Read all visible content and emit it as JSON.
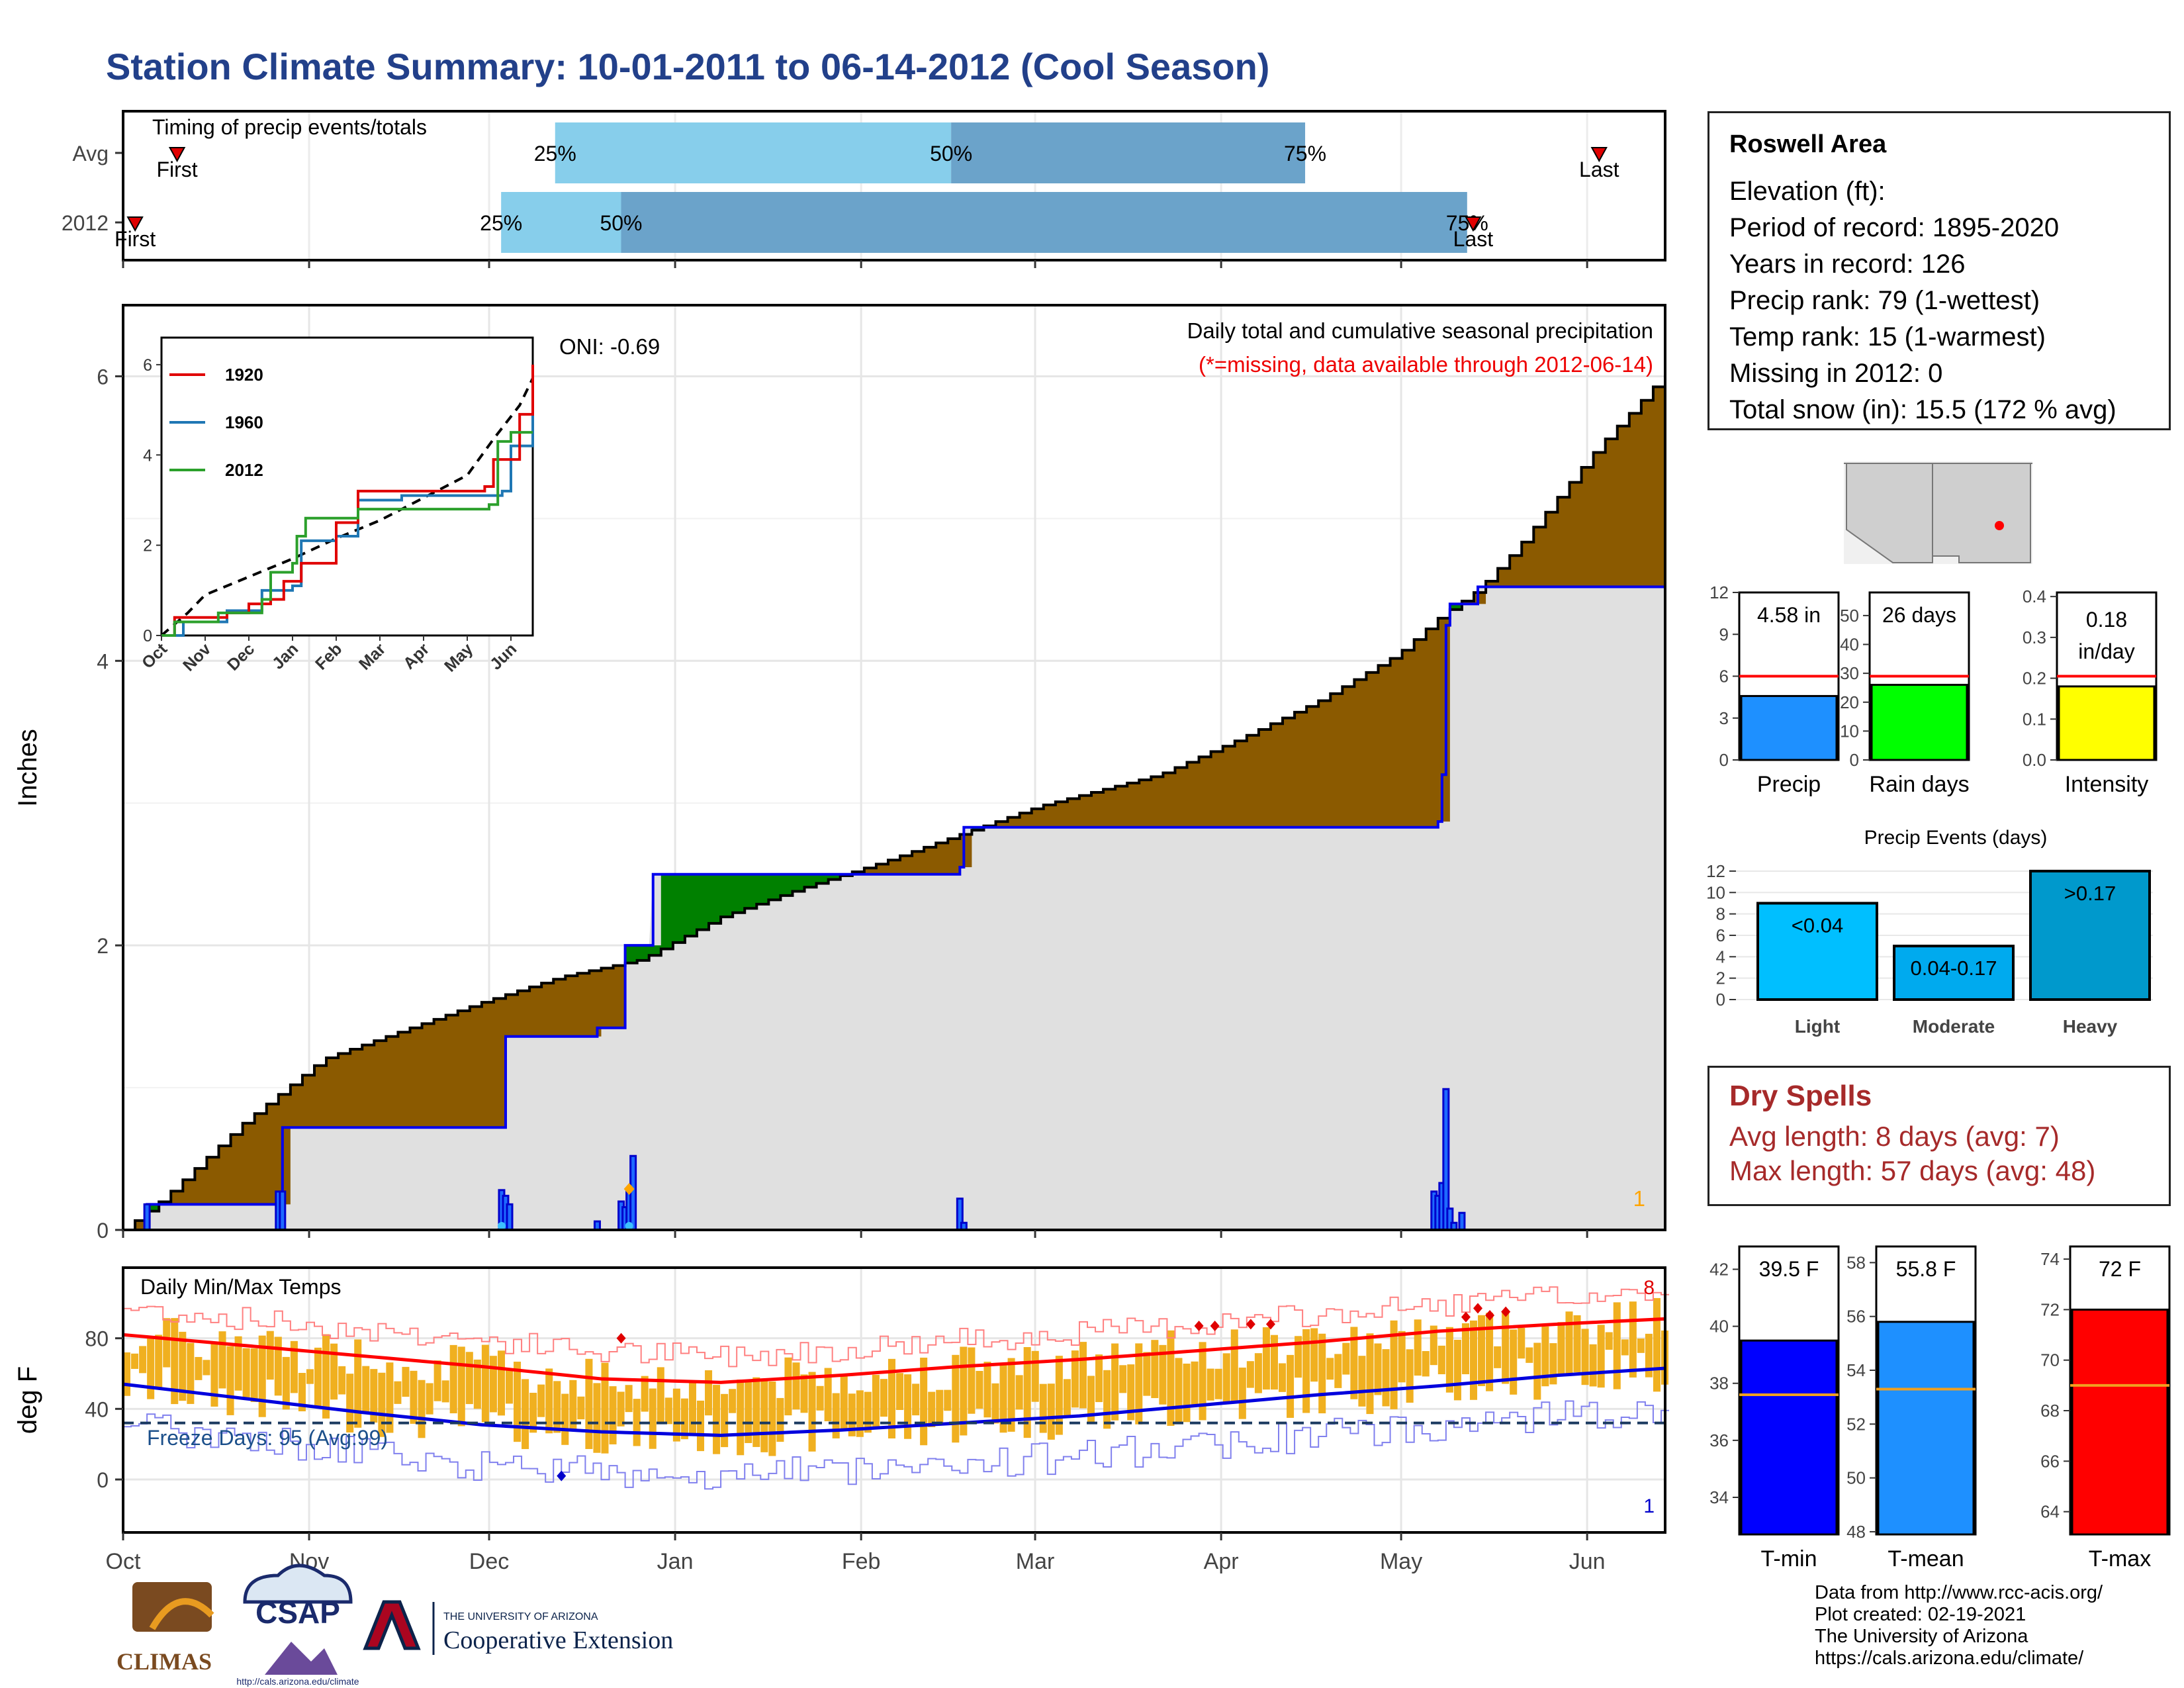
{
  "title": "Station Climate Summary: 10-01-2011 to 06-14-2012 (Cool Season)",
  "station": {
    "name": "Roswell Area",
    "lines": [
      "Elevation (ft):",
      "Period of record: 1895-2020",
      "Years in record: 126",
      "Precip rank: 79 (1-wettest)",
      "Temp rank: 15 (1-warmest)",
      "Missing in 2012: 0",
      "Total snow (in): 15.5 (172 % avg)"
    ]
  },
  "dry_spells": {
    "title": "Dry Spells",
    "avg_length": "Avg length: 8 days (avg: 7)",
    "max_length": "Max length: 57 days (avg: 48)"
  },
  "credits": [
    "Data from http://www.rcc-acis.org/",
    "Plot created: 02-19-2021",
    "The University of Arizona",
    "https://cals.arizona.edu/climate/"
  ],
  "logos": {
    "climas": "CLIMAS",
    "csap": "CSAP",
    "csap_url": "http://cals.arizona.edu/climate",
    "ua_top": "THE UNIVERSITY OF ARIZONA",
    "ua_bottom": "Cooperative Extension"
  },
  "colors": {
    "title": "#22408a",
    "light_blue": "#87ceeb",
    "steel_blue": "#6ba3ca",
    "brown": "#8b5a00",
    "green": "#008000",
    "grey_fill": "#e0e0e0",
    "tmax_line": "#ff0000",
    "tmin_line": "#0000dd",
    "temp_bars": "#f0b020",
    "dry_spell_text": "#a62a2a"
  },
  "chart_data": [
    {
      "id": "timing",
      "type": "bar",
      "title": "Timing of precip events/totals",
      "x_axis": "shared month axis Oct-Jun",
      "rows": [
        {
          "label": "Avg",
          "first": "Oct 10",
          "p25": "Dec 12",
          "p50": "Feb 16",
          "p75": "Apr 15",
          "last": "Jun 3",
          "p25_label": "25%",
          "p50_label": "50%",
          "p75_label": "75%",
          "first_label": "First",
          "last_label": "Last"
        },
        {
          "label": "2012",
          "first": "Oct 3",
          "p25": "Dec 3",
          "p50": "Dec 23",
          "p75": "May 12",
          "last": "May 13",
          "p25_label": "25%",
          "p50_label": "50%",
          "p75_label": "75%",
          "first_label": "First",
          "last_label": "Last"
        }
      ]
    },
    {
      "id": "cumulative_precip",
      "type": "area",
      "title": "Daily total and cumulative seasonal precipitation",
      "subtitle": "(*=missing, data available through 2012-06-14)",
      "ylabel": "Inches",
      "ylim": [
        0,
        6.5
      ],
      "yticks": [
        0,
        2,
        4,
        6
      ],
      "oni": "ONI: -0.69",
      "missing_count": "1",
      "avg_cumulative": [
        [
          0,
          0
        ],
        [
          10,
          0.22
        ],
        [
          30,
          0.75
        ],
        [
          50,
          1.2
        ],
        [
          70,
          1.4
        ],
        [
          90,
          1.6
        ],
        [
          110,
          1.78
        ],
        [
          130,
          1.9
        ],
        [
          150,
          2.2
        ],
        [
          170,
          2.4
        ],
        [
          190,
          2.58
        ],
        [
          210,
          2.78
        ],
        [
          230,
          2.98
        ],
        [
          260,
          3.2
        ],
        [
          280,
          3.45
        ],
        [
          300,
          3.72
        ],
        [
          320,
          4.05
        ],
        [
          330,
          4.3
        ],
        [
          340,
          4.5
        ],
        [
          350,
          4.8
        ],
        [
          360,
          5.15
        ],
        [
          370,
          5.5
        ],
        [
          380,
          5.8
        ],
        [
          387,
          6.02
        ]
      ],
      "season_cumulative": [
        [
          0,
          0
        ],
        [
          6,
          0.18
        ],
        [
          39,
          0.18
        ],
        [
          40,
          0.72
        ],
        [
          95,
          0.72
        ],
        [
          96,
          1.36
        ],
        [
          118,
          1.36
        ],
        [
          119,
          1.42
        ],
        [
          125,
          1.42
        ],
        [
          126,
          2.0
        ],
        [
          132,
          2.0
        ],
        [
          133,
          2.5
        ],
        [
          210,
          2.55
        ],
        [
          211,
          2.83
        ],
        [
          330,
          2.87
        ],
        [
          331,
          3.2
        ],
        [
          332,
          4.25
        ],
        [
          333,
          4.4
        ],
        [
          339,
          4.4
        ],
        [
          340,
          4.52
        ],
        [
          387,
          4.52
        ]
      ],
      "daily_precip": [
        [
          6,
          0.18
        ],
        [
          39,
          0.27
        ],
        [
          40,
          0.27
        ],
        [
          95,
          0.28
        ],
        [
          96,
          0.24
        ],
        [
          97,
          0.18
        ],
        [
          119,
          0.06
        ],
        [
          125,
          0.2
        ],
        [
          126,
          0.16
        ],
        [
          127,
          0.28
        ],
        [
          128,
          0.52
        ],
        [
          210,
          0.22
        ],
        [
          211,
          0.05
        ],
        [
          329,
          0.27
        ],
        [
          330,
          0.24
        ],
        [
          331,
          0.33
        ],
        [
          332,
          0.99
        ],
        [
          333,
          0.15
        ],
        [
          334,
          0.05
        ],
        [
          336,
          0.12
        ]
      ]
    },
    {
      "id": "inset_cumulative",
      "type": "line",
      "series_names": [
        "1920",
        "1960",
        "2012"
      ],
      "yticks": [
        0,
        2,
        4,
        6
      ],
      "months": [
        "Oct",
        "Nov",
        "Dec",
        "Jan",
        "Feb",
        "Mar",
        "Apr",
        "May",
        "Jun"
      ]
    },
    {
      "id": "temps",
      "type": "line",
      "title": "Daily Min/Max Temps",
      "ylabel": "deg F",
      "ylim": [
        -30,
        120
      ],
      "yticks": [
        0,
        40,
        80
      ],
      "freeze_label": "Freeze Days: 95 (Avg:99)",
      "freeze_line": 32,
      "count_max": "8",
      "count_min": "1",
      "avg_tmax": [
        [
          0,
          82
        ],
        [
          30,
          76
        ],
        [
          60,
          70
        ],
        [
          90,
          64
        ],
        [
          120,
          57
        ],
        [
          150,
          55
        ],
        [
          180,
          59
        ],
        [
          210,
          64
        ],
        [
          240,
          68
        ],
        [
          270,
          73
        ],
        [
          300,
          78
        ],
        [
          330,
          84
        ],
        [
          360,
          88
        ],
        [
          387,
          91
        ]
      ],
      "avg_tmin": [
        [
          0,
          54
        ],
        [
          30,
          46
        ],
        [
          60,
          38
        ],
        [
          90,
          31
        ],
        [
          120,
          27
        ],
        [
          150,
          25
        ],
        [
          180,
          28
        ],
        [
          210,
          32
        ],
        [
          240,
          36
        ],
        [
          270,
          42
        ],
        [
          300,
          48
        ],
        [
          330,
          53
        ],
        [
          360,
          59
        ],
        [
          387,
          63
        ]
      ]
    },
    {
      "id": "summary_precip",
      "type": "bar",
      "panels": [
        {
          "name": "Precip",
          "value": 4.58,
          "label": "4.58 in",
          "avg": 6.0,
          "ylim": [
            0,
            12
          ],
          "yticks": [
            0,
            3,
            6,
            9,
            12
          ],
          "color": "#1e90ff"
        },
        {
          "name": "Rain days",
          "value": 26,
          "label": "26 days",
          "avg": 29,
          "ylim": [
            0,
            58
          ],
          "yticks": [
            0,
            10,
            20,
            30,
            40,
            50
          ],
          "color": "#00ff00"
        },
        {
          "name": "Intensity",
          "value": 0.18,
          "label": "0.18 in/day",
          "avg": 0.205,
          "ylim": [
            0,
            0.41
          ],
          "yticks": [
            0.0,
            0.1,
            0.2,
            0.3,
            0.4
          ],
          "color": "#ffff00"
        }
      ]
    },
    {
      "id": "precip_events",
      "type": "bar",
      "title": "Precip Events (days)",
      "categories": [
        "Light",
        "Moderate",
        "Heavy"
      ],
      "bar_labels": [
        "<0.04",
        "0.04-0.17",
        ">0.17"
      ],
      "values": [
        9,
        5,
        12
      ],
      "ylim": [
        0,
        12.8
      ],
      "yticks": [
        0,
        2,
        4,
        6,
        8,
        10,
        12
      ],
      "colors": [
        "#00bfff",
        "#00aaee",
        "#0099cc"
      ]
    },
    {
      "id": "summary_temps",
      "type": "bar",
      "panels": [
        {
          "name": "T-min",
          "value": 39.5,
          "label": "39.5 F",
          "avg": 37.6,
          "ylim": [
            32.7,
            42.8
          ],
          "yticks": [
            34,
            36,
            38,
            40,
            42
          ],
          "color": "#0000ff"
        },
        {
          "name": "T-mean",
          "value": 55.8,
          "label": "55.8 F",
          "avg": 53.3,
          "ylim": [
            47.9,
            58.6
          ],
          "yticks": [
            48,
            50,
            52,
            54,
            56,
            58
          ],
          "color": "#1e90ff"
        },
        {
          "name": "T-max",
          "value": 72,
          "label": "72 F",
          "avg": 69.0,
          "ylim": [
            63.1,
            74.5
          ],
          "yticks": [
            64,
            66,
            68,
            70,
            72,
            74
          ],
          "color": "#ff0000"
        }
      ]
    }
  ],
  "months": [
    "Oct",
    "Nov",
    "Dec",
    "Jan",
    "Feb",
    "Mar",
    "Apr",
    "May",
    "Jun"
  ]
}
